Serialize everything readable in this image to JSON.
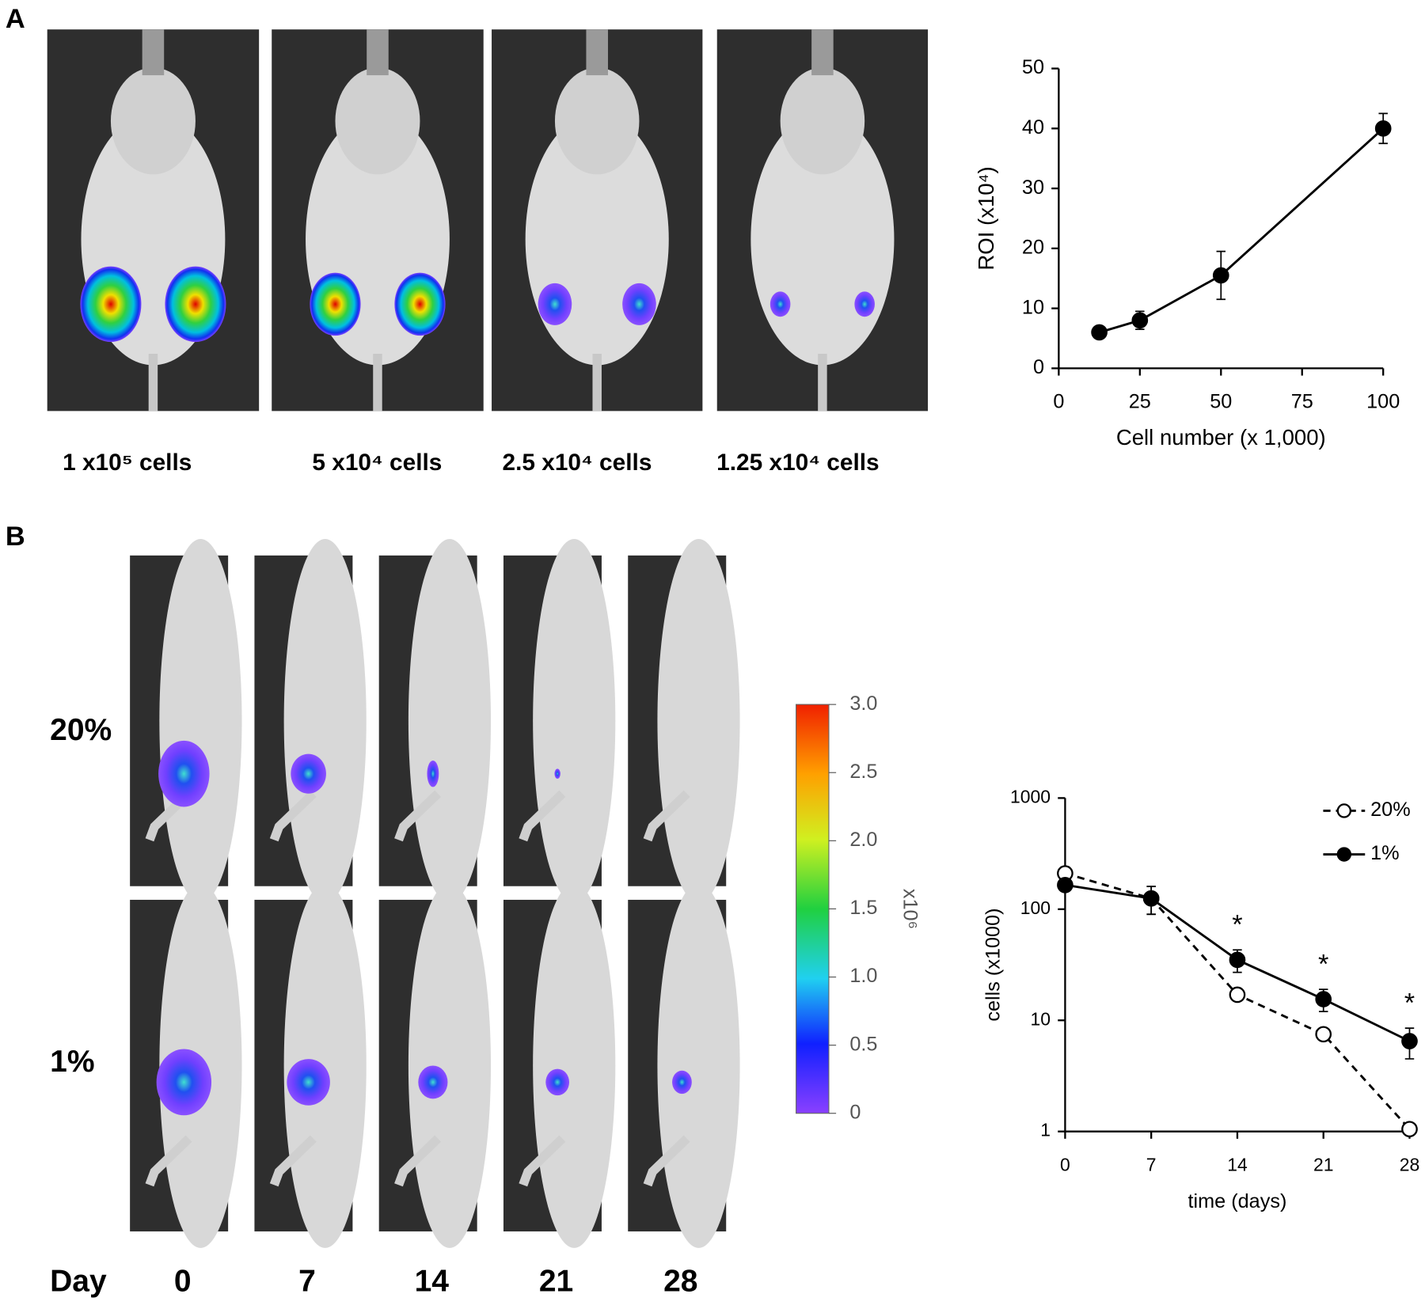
{
  "panel_labels": [
    "A",
    "B"
  ],
  "panel_a": {
    "captions": [
      "1 x10⁵ cells",
      "5 x10⁴ cells",
      "2.5 x10⁴ cells",
      "1.25 x10⁴ cells"
    ]
  },
  "panel_b": {
    "row_labels": [
      "20%",
      "1%"
    ],
    "day_label": "Day",
    "days": [
      "0",
      "7",
      "14",
      "21",
      "28"
    ],
    "colorbar": {
      "labels": [
        "3.0",
        "2.5",
        "2.0",
        "1.5",
        "1.0",
        "0.5",
        "0"
      ],
      "unit": "x10⁶"
    }
  },
  "chart_data": [
    {
      "type": "line",
      "x_label": "Cell number (x 1,000)",
      "y_label": "ROI (x10⁴)",
      "x": [
        12.5,
        25,
        50,
        100
      ],
      "values": [
        6,
        8,
        15.5,
        40
      ],
      "errors": [
        1,
        1.5,
        4,
        2.5
      ],
      "color": "#000000",
      "xlim": [
        0,
        100
      ],
      "xticks": [
        0,
        25,
        50,
        75,
        100
      ],
      "ylim": [
        0,
        50
      ],
      "yticks": [
        0,
        10,
        20,
        30,
        40,
        50
      ]
    },
    {
      "type": "line",
      "log_y": true,
      "x_label": "time (days)",
      "y_label": "cells (x1000)",
      "x": [
        0,
        7,
        14,
        21,
        28
      ],
      "series": [
        {
          "name": "20%",
          "color": "#000000",
          "dashed": true,
          "marker": "open",
          "values": [
            210,
            125,
            17,
            7.5,
            1.05
          ],
          "errors": [
            30,
            35,
            2,
            0.8,
            0.1
          ]
        },
        {
          "name": "1%",
          "color": "#000000",
          "dashed": false,
          "marker": "filled",
          "values": [
            165,
            125,
            35,
            15.5,
            6.5
          ],
          "errors": [
            20,
            35,
            8,
            3.5,
            2
          ]
        }
      ],
      "annotations": [
        {
          "x": 14,
          "text": "*"
        },
        {
          "x": 21,
          "text": "*"
        },
        {
          "x": 28,
          "text": "*"
        }
      ],
      "legend": "top-right",
      "xlim": [
        0,
        28
      ],
      "xticks": [
        0,
        7,
        14,
        21,
        28
      ],
      "ylim": [
        1,
        1000
      ],
      "yticks": [
        1,
        10,
        100,
        1000
      ]
    }
  ]
}
